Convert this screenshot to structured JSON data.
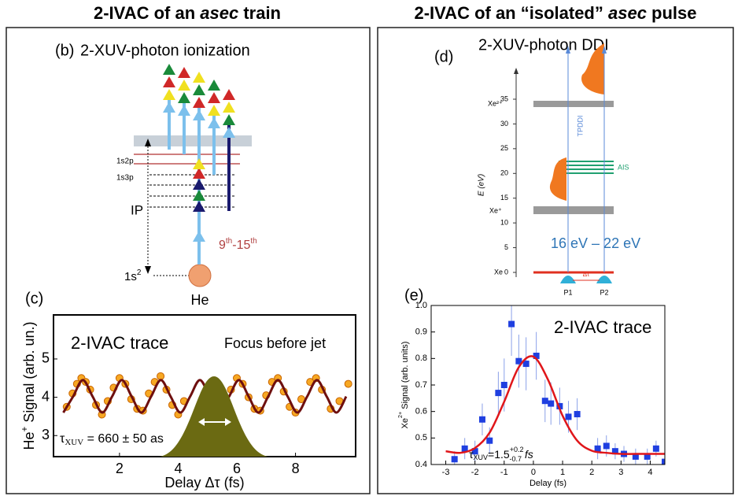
{
  "headings": {
    "left": [
      "2-IVAC of an ",
      "asec",
      " train"
    ],
    "right": [
      "2-IVAC of an “isolated” ",
      "asec",
      " pulse"
    ]
  },
  "panel_b": {
    "label": "(b)",
    "title": "2-XUV-photon ionization",
    "levels": [
      "1s3p",
      "1s2p"
    ],
    "ip": "IP",
    "ground": [
      "1s",
      "2"
    ],
    "atom": "He",
    "harmonics": [
      "9",
      "th",
      "-15",
      "th"
    ]
  },
  "panel_d": {
    "label": "(d)",
    "title": "2-XUV-photon DDI",
    "ylabel": "E (eV)",
    "ylim": [
      0,
      35
    ],
    "yticks": [
      0,
      5,
      10,
      15,
      20,
      25,
      30,
      35
    ],
    "states": [
      "Xe²⁺",
      "Xe⁺",
      "Xe"
    ],
    "ais": "AIS",
    "process": "TPDDI",
    "pulses": [
      "P1",
      "P2"
    ],
    "delay": "Δτ",
    "range": "16 eV – 22 eV"
  },
  "chart_data": [
    {
      "type": "scatter",
      "panel_label": "(c)",
      "annotations": [
        "2-IVAC trace",
        "Focus before jet"
      ],
      "duration": {
        "symbol": "τ",
        "sub": "XUV",
        "text": " = 660 ± 50 as"
      },
      "xlabel": "Delay Δτ (fs)",
      "ylabel": {
        "text": "He",
        "sup": "+",
        "rest": " Signal (arb. un.)"
      },
      "xlim": [
        -0.25,
        10.05
      ],
      "ylim": [
        2.45,
        6.15
      ],
      "xticks": [
        2,
        4,
        6,
        8
      ],
      "yticks": [
        3,
        4,
        5
      ],
      "series": [
        {
          "kind": "scatter",
          "color": "#f7a823",
          "x": [
            0.2,
            0.4,
            0.55,
            0.7,
            0.85,
            1.0,
            1.2,
            1.4,
            1.6,
            1.8,
            2.0,
            2.2,
            2.4,
            2.6,
            2.8,
            3.0,
            3.2,
            3.4,
            3.6,
            3.8,
            4.0,
            4.2,
            5.8,
            6.0,
            6.2,
            6.4,
            6.6,
            6.8,
            7.0,
            7.2,
            7.4,
            7.6,
            7.8,
            8.0,
            8.2,
            8.5,
            8.7,
            8.9,
            9.2,
            9.5,
            9.8
          ],
          "values": [
            3.75,
            4.1,
            4.35,
            4.5,
            4.4,
            4.2,
            3.8,
            3.55,
            3.9,
            4.25,
            4.5,
            4.35,
            3.95,
            3.7,
            3.65,
            4.1,
            4.4,
            4.55,
            4.2,
            3.8,
            3.55,
            3.9,
            4.2,
            4.5,
            4.35,
            4.0,
            3.7,
            3.65,
            4.05,
            4.4,
            4.5,
            4.15,
            3.75,
            3.6,
            3.95,
            4.4,
            4.5,
            4.2,
            3.7,
            3.9,
            4.35
          ]
        },
        {
          "kind": "line",
          "color": "#6e0f0f",
          "x": [
            0.085,
            0.418,
            0.75,
            1.083,
            1.415,
            1.748,
            2.08,
            2.413,
            2.745,
            3.078,
            3.41,
            3.743,
            4.075,
            4.408,
            4.74,
            5.073,
            5.405,
            5.738,
            6.07,
            6.403,
            6.735,
            7.068,
            7.4,
            7.733,
            8.065,
            8.398,
            8.73,
            9.063,
            9.395,
            9.728
          ],
          "values": [
            3.6,
            4.02,
            4.45,
            4.02,
            3.6,
            4.02,
            4.45,
            4.02,
            3.6,
            4.02,
            4.45,
            4.02,
            3.6,
            4.02,
            4.45,
            4.02,
            3.6,
            4.02,
            4.45,
            4.02,
            3.6,
            4.02,
            4.45,
            4.02,
            3.6,
            4.02,
            4.45,
            4.02,
            3.6,
            4.02
          ]
        }
      ]
    },
    {
      "type": "scatter",
      "panel_label": "(e)",
      "annotations": [
        "2-IVAC trace"
      ],
      "duration": {
        "symbol": "τ",
        "sub": "XUV",
        "text": "=1.5",
        "sup": "+0.2",
        "sub2": "-0.7",
        "unit": " fs"
      },
      "xlabel": "Delay (fs)",
      "ylabel": {
        "text": "Xe",
        "sup": "2+",
        "rest": " Signal (arb. units)"
      },
      "xlim": [
        -3.5,
        4.5
      ],
      "ylim": [
        0.4,
        1.0
      ],
      "xticks": [
        -3,
        -2,
        -1,
        0,
        1,
        2,
        3,
        4
      ],
      "yticks": [
        0.4,
        0.5,
        0.6,
        0.7,
        0.8,
        0.9,
        {
          "value": 1,
          "label": "1.0"
        }
      ],
      "series": [
        {
          "kind": "scatter",
          "color": "#1f3fe0",
          "x": [
            -2.7,
            -2.35,
            -2.0,
            -1.75,
            -1.5,
            -1.2,
            -1.0,
            -0.75,
            -0.5,
            -0.25,
            0.1,
            0.4,
            0.6,
            0.9,
            1.2,
            1.5,
            2.2,
            2.5,
            2.8,
            3.1,
            3.5,
            3.9,
            4.2,
            4.5
          ],
          "values": [
            0.42,
            0.46,
            0.45,
            0.57,
            0.49,
            0.67,
            0.7,
            0.93,
            0.79,
            0.78,
            0.81,
            0.64,
            0.63,
            0.62,
            0.58,
            0.59,
            0.46,
            0.47,
            0.45,
            0.44,
            0.43,
            0.43,
            0.46,
            0.41
          ],
          "errors": [
            0.03,
            0.04,
            0.04,
            0.06,
            0.05,
            0.08,
            0.1,
            0.12,
            0.1,
            0.1,
            0.09,
            0.08,
            0.08,
            0.07,
            0.06,
            0.06,
            0.04,
            0.04,
            0.03,
            0.03,
            0.03,
            0.03,
            0.03,
            0.03
          ]
        },
        {
          "kind": "line",
          "color": "#e0161a",
          "x": [
            -3,
            -2.5,
            -2,
            -1.5,
            -1,
            -0.5,
            0,
            0.5,
            1,
            1.5,
            2,
            2.5,
            3,
            3.5,
            4,
            4.5
          ],
          "values": [
            0.45,
            0.444,
            0.462,
            0.52,
            0.637,
            0.767,
            0.807,
            0.72,
            0.584,
            0.49,
            0.452,
            0.444,
            0.44,
            0.44,
            0.44,
            0.44
          ]
        }
      ]
    }
  ]
}
